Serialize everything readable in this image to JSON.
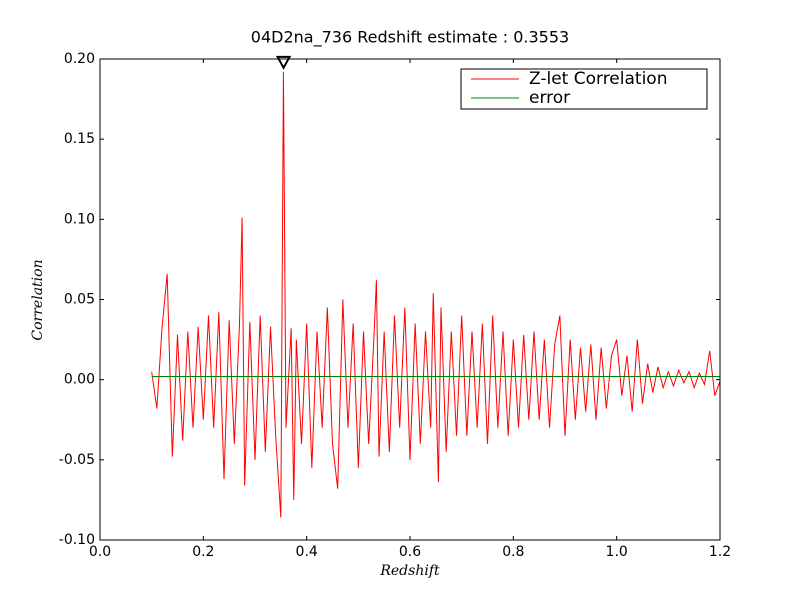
{
  "chart_data": {
    "type": "line",
    "title": "04D2na_736 Redshift estimate : 0.3553",
    "x_label": "Redshift",
    "y_label": "Correlation",
    "xlim": [
      0,
      1.2
    ],
    "ylim": [
      -0.1,
      0.2
    ],
    "xticks": [
      {
        "value": 0,
        "label": "0.0"
      },
      0.2,
      0.4,
      0.6,
      0.8,
      {
        "value": 1,
        "label": "1.0"
      },
      1.2
    ],
    "yticks": [
      {
        "value": -0.1,
        "label": "-0.10"
      },
      -0.05,
      {
        "value": 0,
        "label": "0.00"
      },
      0.05,
      {
        "value": 0.1,
        "label": "0.10"
      },
      0.15,
      {
        "value": 0.2,
        "label": "0.20"
      }
    ],
    "legend": "upper right",
    "peak": {
      "x": 0.3553,
      "y": 0.192
    },
    "series": [
      {
        "name": "Z-let Correlation",
        "color": "#ff0000",
        "x": [
          0.1,
          0.11,
          0.12,
          0.13,
          0.14,
          0.15,
          0.16,
          0.17,
          0.18,
          0.19,
          0.2,
          0.21,
          0.22,
          0.23,
          0.24,
          0.25,
          0.26,
          0.27,
          0.275,
          0.28,
          0.29,
          0.3,
          0.31,
          0.32,
          0.33,
          0.34,
          0.35,
          0.355,
          0.36,
          0.37,
          0.375,
          0.38,
          0.39,
          0.4,
          0.41,
          0.42,
          0.43,
          0.44,
          0.45,
          0.46,
          0.47,
          0.48,
          0.49,
          0.5,
          0.51,
          0.52,
          0.53,
          0.535,
          0.54,
          0.55,
          0.56,
          0.57,
          0.58,
          0.59,
          0.6,
          0.61,
          0.62,
          0.63,
          0.64,
          0.645,
          0.655,
          0.66,
          0.67,
          0.68,
          0.69,
          0.7,
          0.71,
          0.72,
          0.73,
          0.74,
          0.75,
          0.76,
          0.77,
          0.78,
          0.79,
          0.8,
          0.81,
          0.82,
          0.83,
          0.84,
          0.85,
          0.86,
          0.87,
          0.88,
          0.89,
          0.9,
          0.91,
          0.92,
          0.93,
          0.94,
          0.95,
          0.96,
          0.97,
          0.98,
          0.99,
          1.0,
          1.01,
          1.02,
          1.03,
          1.04,
          1.05,
          1.06,
          1.07,
          1.08,
          1.09,
          1.1,
          1.11,
          1.12,
          1.13,
          1.14,
          1.15,
          1.16,
          1.17,
          1.18,
          1.19,
          1.2
        ],
        "values": [
          0.005,
          -0.018,
          0.032,
          0.066,
          -0.048,
          0.028,
          -0.038,
          0.03,
          -0.03,
          0.033,
          -0.025,
          0.04,
          -0.03,
          0.042,
          -0.062,
          0.037,
          -0.04,
          0.035,
          0.101,
          -0.066,
          0.036,
          -0.05,
          0.04,
          -0.045,
          0.033,
          -0.035,
          -0.086,
          0.192,
          -0.03,
          0.032,
          -0.075,
          0.025,
          -0.04,
          0.035,
          -0.055,
          0.03,
          -0.03,
          0.045,
          -0.04,
          -0.068,
          0.05,
          -0.03,
          0.035,
          -0.055,
          0.03,
          -0.04,
          0.025,
          0.062,
          -0.048,
          0.03,
          -0.045,
          0.04,
          -0.03,
          0.045,
          -0.05,
          0.035,
          -0.04,
          0.03,
          -0.03,
          0.054,
          -0.064,
          0.045,
          -0.045,
          0.03,
          -0.035,
          0.04,
          -0.035,
          0.03,
          -0.03,
          0.035,
          -0.04,
          0.04,
          -0.03,
          0.03,
          -0.035,
          0.025,
          -0.03,
          0.028,
          -0.025,
          0.03,
          -0.025,
          0.025,
          -0.03,
          0.022,
          0.04,
          -0.035,
          0.025,
          -0.025,
          0.02,
          -0.02,
          0.022,
          -0.025,
          0.02,
          -0.018,
          0.015,
          0.025,
          -0.01,
          0.015,
          -0.02,
          0.025,
          -0.015,
          0.01,
          -0.008,
          0.008,
          -0.005,
          0.005,
          -0.004,
          0.006,
          -0.002,
          0.005,
          -0.005,
          0.004,
          -0.003,
          0.018,
          -0.01,
          -0.001
        ]
      },
      {
        "name": "error",
        "color": "#008000",
        "x": [
          0.1,
          1.2
        ],
        "values": [
          0.002,
          0.002
        ]
      }
    ]
  }
}
